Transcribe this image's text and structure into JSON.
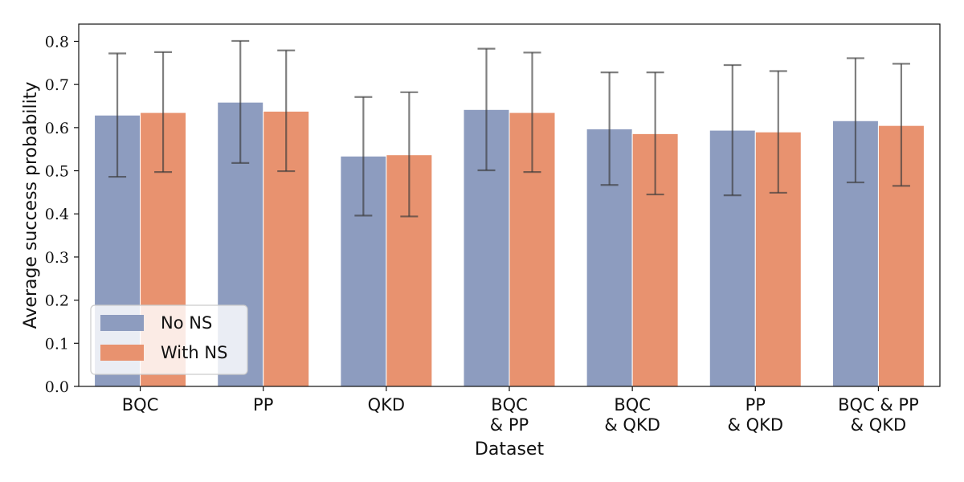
{
  "chart_data": {
    "type": "bar",
    "categories": [
      [
        "BQC"
      ],
      [
        "PP"
      ],
      [
        "QKD"
      ],
      [
        "BQC",
        "& PP"
      ],
      [
        "BQC",
        "& QKD"
      ],
      [
        "PP",
        "& QKD"
      ],
      [
        "BQC & PP",
        "& QKD"
      ]
    ],
    "series": [
      {
        "name": "No NS",
        "color": "#8d9cbf",
        "values": [
          0.629,
          0.659,
          0.534,
          0.642,
          0.597,
          0.594,
          0.616
        ],
        "error_low": [
          0.486,
          0.518,
          0.396,
          0.501,
          0.467,
          0.443,
          0.473
        ],
        "error_high": [
          0.772,
          0.801,
          0.671,
          0.783,
          0.728,
          0.745,
          0.761
        ]
      },
      {
        "name": "With NS",
        "color": "#e8926f",
        "values": [
          0.635,
          0.638,
          0.537,
          0.635,
          0.586,
          0.59,
          0.605
        ],
        "error_low": [
          0.497,
          0.499,
          0.394,
          0.497,
          0.445,
          0.449,
          0.465
        ],
        "error_high": [
          0.775,
          0.779,
          0.682,
          0.774,
          0.728,
          0.731,
          0.748
        ]
      }
    ],
    "xlabel": "Dataset",
    "ylabel": "Average success probability",
    "ylim": [
      0,
      0.84
    ],
    "yticks": [
      "0.0",
      "0.1",
      "0.2",
      "0.3",
      "0.4",
      "0.5",
      "0.6",
      "0.7",
      "0.8"
    ],
    "legend_position": "lower-left",
    "grid": false
  }
}
